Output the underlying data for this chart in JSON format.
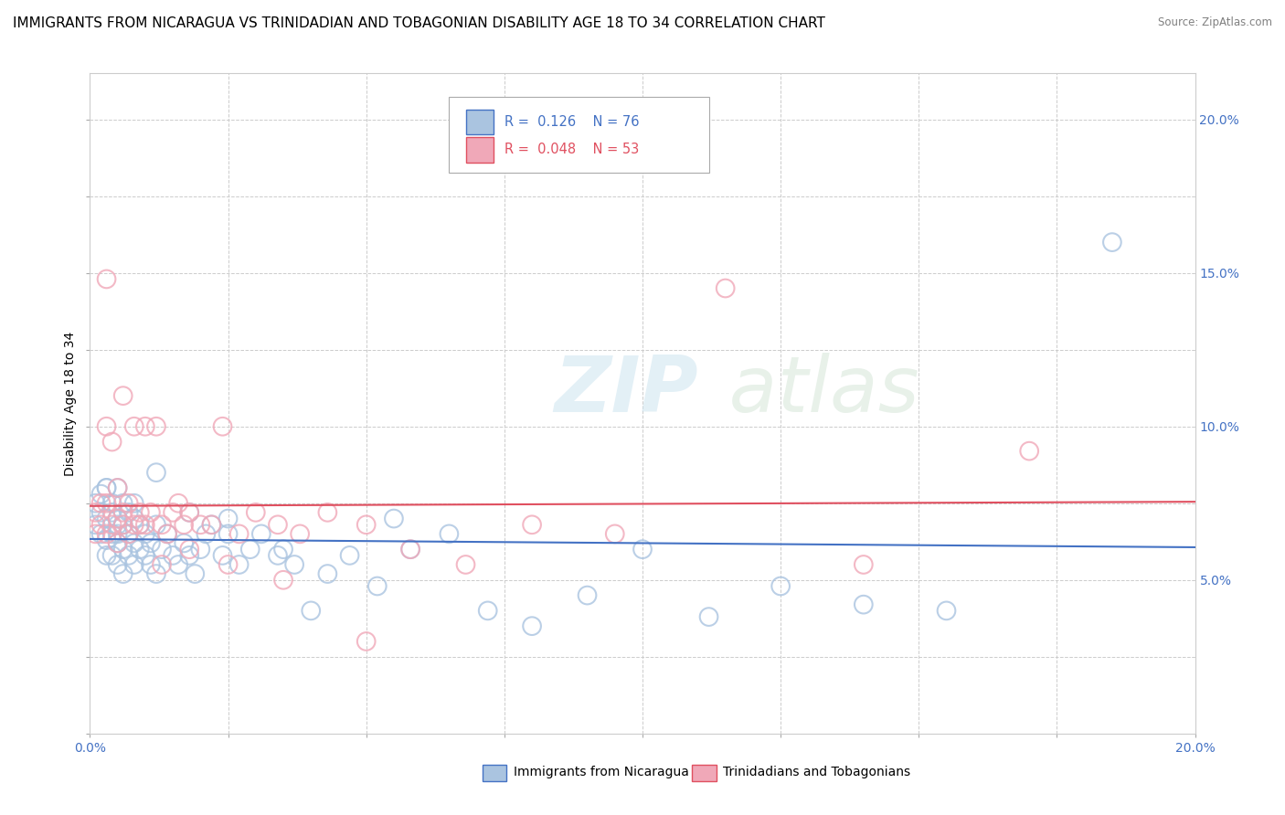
{
  "title": "IMMIGRANTS FROM NICARAGUA VS TRINIDADIAN AND TOBAGONIAN DISABILITY AGE 18 TO 34 CORRELATION CHART",
  "source": "Source: ZipAtlas.com",
  "ylabel": "Disability Age 18 to 34",
  "xlim": [
    0.0,
    0.2
  ],
  "ylim": [
    0.0,
    0.215
  ],
  "series1_label": "Immigrants from Nicaragua",
  "series2_label": "Trinidadians and Tobagonians",
  "series1_color": "#aac4e0",
  "series2_color": "#f0a8b8",
  "series1_line_color": "#4472c4",
  "series2_line_color": "#e05060",
  "series1_R": "0.126",
  "series1_N": "76",
  "series2_R": "0.048",
  "series2_N": "53",
  "watermark_zip": "ZIP",
  "watermark_atlas": "atlas",
  "title_fontsize": 11,
  "axis_label_fontsize": 10,
  "tick_label_fontsize": 10,
  "series1_x": [
    0.001,
    0.001,
    0.002,
    0.002,
    0.002,
    0.003,
    0.003,
    0.003,
    0.003,
    0.004,
    0.004,
    0.004,
    0.004,
    0.005,
    0.005,
    0.005,
    0.005,
    0.005,
    0.006,
    0.006,
    0.006,
    0.006,
    0.007,
    0.007,
    0.007,
    0.008,
    0.008,
    0.008,
    0.009,
    0.009,
    0.01,
    0.01,
    0.011,
    0.011,
    0.012,
    0.012,
    0.013,
    0.014,
    0.015,
    0.016,
    0.017,
    0.018,
    0.019,
    0.02,
    0.021,
    0.022,
    0.024,
    0.025,
    0.027,
    0.029,
    0.031,
    0.034,
    0.037,
    0.04,
    0.043,
    0.047,
    0.052,
    0.058,
    0.065,
    0.072,
    0.08,
    0.09,
    0.1,
    0.112,
    0.125,
    0.14,
    0.155,
    0.003,
    0.005,
    0.008,
    0.012,
    0.018,
    0.025,
    0.035,
    0.055,
    0.185
  ],
  "series1_y": [
    0.075,
    0.068,
    0.072,
    0.065,
    0.078,
    0.07,
    0.063,
    0.058,
    0.08,
    0.072,
    0.065,
    0.058,
    0.075,
    0.07,
    0.062,
    0.055,
    0.068,
    0.08,
    0.068,
    0.06,
    0.052,
    0.075,
    0.065,
    0.058,
    0.072,
    0.062,
    0.055,
    0.07,
    0.06,
    0.068,
    0.058,
    0.065,
    0.055,
    0.062,
    0.052,
    0.068,
    0.06,
    0.065,
    0.058,
    0.055,
    0.062,
    0.058,
    0.052,
    0.06,
    0.065,
    0.068,
    0.058,
    0.07,
    0.055,
    0.06,
    0.065,
    0.058,
    0.055,
    0.04,
    0.052,
    0.058,
    0.048,
    0.06,
    0.065,
    0.04,
    0.035,
    0.045,
    0.06,
    0.038,
    0.048,
    0.042,
    0.04,
    0.08,
    0.065,
    0.075,
    0.085,
    0.072,
    0.065,
    0.06,
    0.07,
    0.16
  ],
  "series2_x": [
    0.001,
    0.001,
    0.002,
    0.002,
    0.003,
    0.003,
    0.003,
    0.004,
    0.004,
    0.005,
    0.005,
    0.005,
    0.006,
    0.006,
    0.007,
    0.007,
    0.008,
    0.008,
    0.009,
    0.01,
    0.01,
    0.011,
    0.012,
    0.013,
    0.014,
    0.015,
    0.016,
    0.017,
    0.018,
    0.02,
    0.022,
    0.024,
    0.027,
    0.03,
    0.034,
    0.038,
    0.043,
    0.05,
    0.058,
    0.068,
    0.08,
    0.095,
    0.115,
    0.14,
    0.17,
    0.003,
    0.006,
    0.009,
    0.013,
    0.018,
    0.025,
    0.035,
    0.05
  ],
  "series2_y": [
    0.072,
    0.065,
    0.075,
    0.068,
    0.1,
    0.065,
    0.075,
    0.095,
    0.068,
    0.07,
    0.062,
    0.08,
    0.068,
    0.11,
    0.075,
    0.065,
    0.1,
    0.068,
    0.072,
    0.1,
    0.068,
    0.072,
    0.1,
    0.068,
    0.065,
    0.072,
    0.075,
    0.068,
    0.072,
    0.068,
    0.068,
    0.1,
    0.065,
    0.072,
    0.068,
    0.065,
    0.072,
    0.068,
    0.06,
    0.055,
    0.068,
    0.065,
    0.145,
    0.055,
    0.092,
    0.148,
    0.072,
    0.068,
    0.055,
    0.06,
    0.055,
    0.05,
    0.03
  ]
}
